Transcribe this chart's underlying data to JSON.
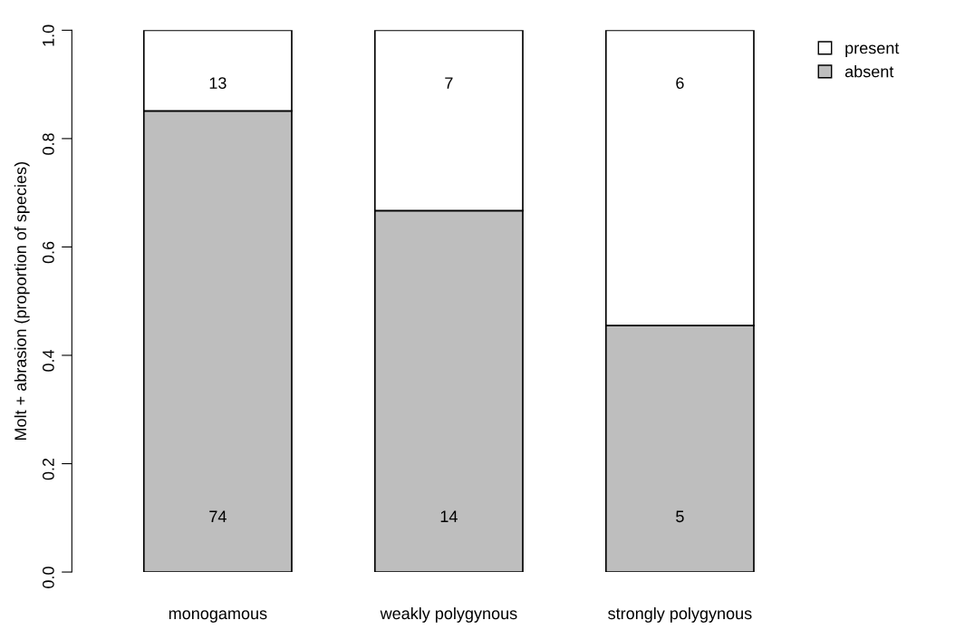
{
  "chart_data": {
    "type": "bar",
    "stacked": true,
    "ylabel": "Molt + abrasion (proportion of species)",
    "categories": [
      "monogamous",
      "weakly polygynous",
      "strongly polygynous"
    ],
    "series": [
      {
        "name": "absent",
        "color": "#bebebe",
        "values": [
          0.851,
          0.667,
          0.455
        ]
      },
      {
        "name": "present",
        "color": "#ffffff",
        "values": [
          0.149,
          0.333,
          0.545
        ]
      }
    ],
    "annotations": [
      "74",
      "14",
      "5",
      "13",
      "7",
      "6"
    ],
    "ylim": [
      0,
      1
    ],
    "yticks": [
      {
        "value": 0,
        "label": "0.0"
      },
      {
        "value": 0.2,
        "label": "0.2"
      },
      {
        "value": 0.4,
        "label": "0.4"
      },
      {
        "value": 0.6,
        "label": "0.6"
      },
      {
        "value": 0.8,
        "label": "0.8"
      },
      {
        "value": 1,
        "label": "1.0"
      }
    ],
    "grid": false,
    "legend": "top right"
  }
}
